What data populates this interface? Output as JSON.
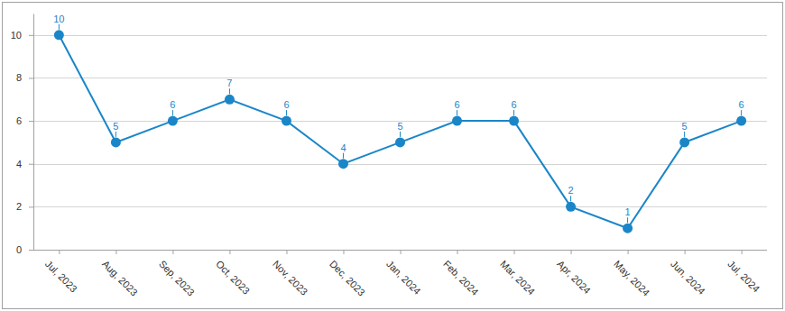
{
  "chart_data": {
    "type": "line",
    "categories": [
      "Jul, 2023",
      "Aug, 2023",
      "Sep, 2023",
      "Oct, 2023",
      "Nov, 2023",
      "Dec, 2023",
      "Jan, 2024",
      "Feb, 2024",
      "Mar, 2024",
      "Apr, 2024",
      "May, 2024",
      "Jun, 2024",
      "Jul, 2024"
    ],
    "values": [
      10,
      5,
      6,
      7,
      6,
      4,
      5,
      6,
      6,
      2,
      1,
      5,
      6
    ],
    "color": "#1a86c8",
    "ylim": [
      0,
      11
    ],
    "yticks": [
      0,
      2,
      4,
      6,
      8,
      10
    ],
    "grid": true,
    "data_labels": true,
    "marker": "circle"
  }
}
